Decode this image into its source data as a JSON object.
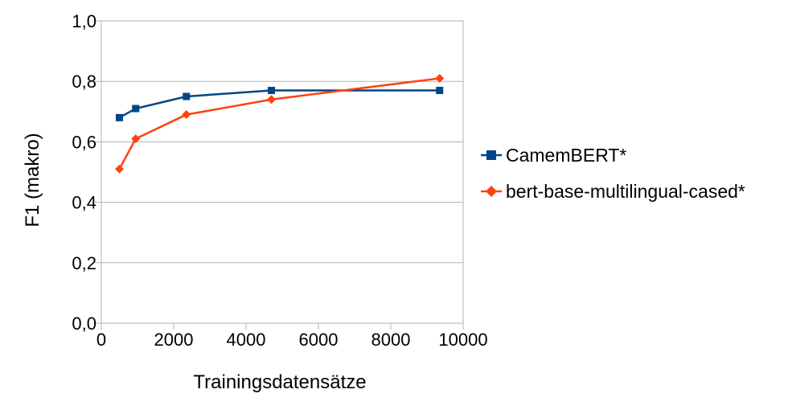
{
  "chart_data": {
    "type": "line",
    "xlabel": "Trainingsdatensätze",
    "ylabel": "F1 (makro)",
    "xlim": [
      0,
      10000
    ],
    "ylim": [
      0,
      1.0
    ],
    "x_ticks": [
      "0",
      "2000",
      "4000",
      "6000",
      "8000",
      "10000"
    ],
    "y_ticks": [
      "0,0",
      "0,2",
      "0,4",
      "0,6",
      "0,8",
      "1,0"
    ],
    "grid": "horizontal",
    "legend_position": "right",
    "series": [
      {
        "name": "CamemBERT*",
        "color": "#004586",
        "marker": "square",
        "x": [
          500,
          950,
          2350,
          4700,
          9350
        ],
        "values": [
          0.68,
          0.71,
          0.75,
          0.77,
          0.77
        ]
      },
      {
        "name": "bert-base-multilingual-cased*",
        "color": "#ff420e",
        "marker": "diamond",
        "x": [
          500,
          950,
          2350,
          4700,
          9350
        ],
        "values": [
          0.51,
          0.61,
          0.69,
          0.74,
          0.81
        ]
      }
    ]
  }
}
